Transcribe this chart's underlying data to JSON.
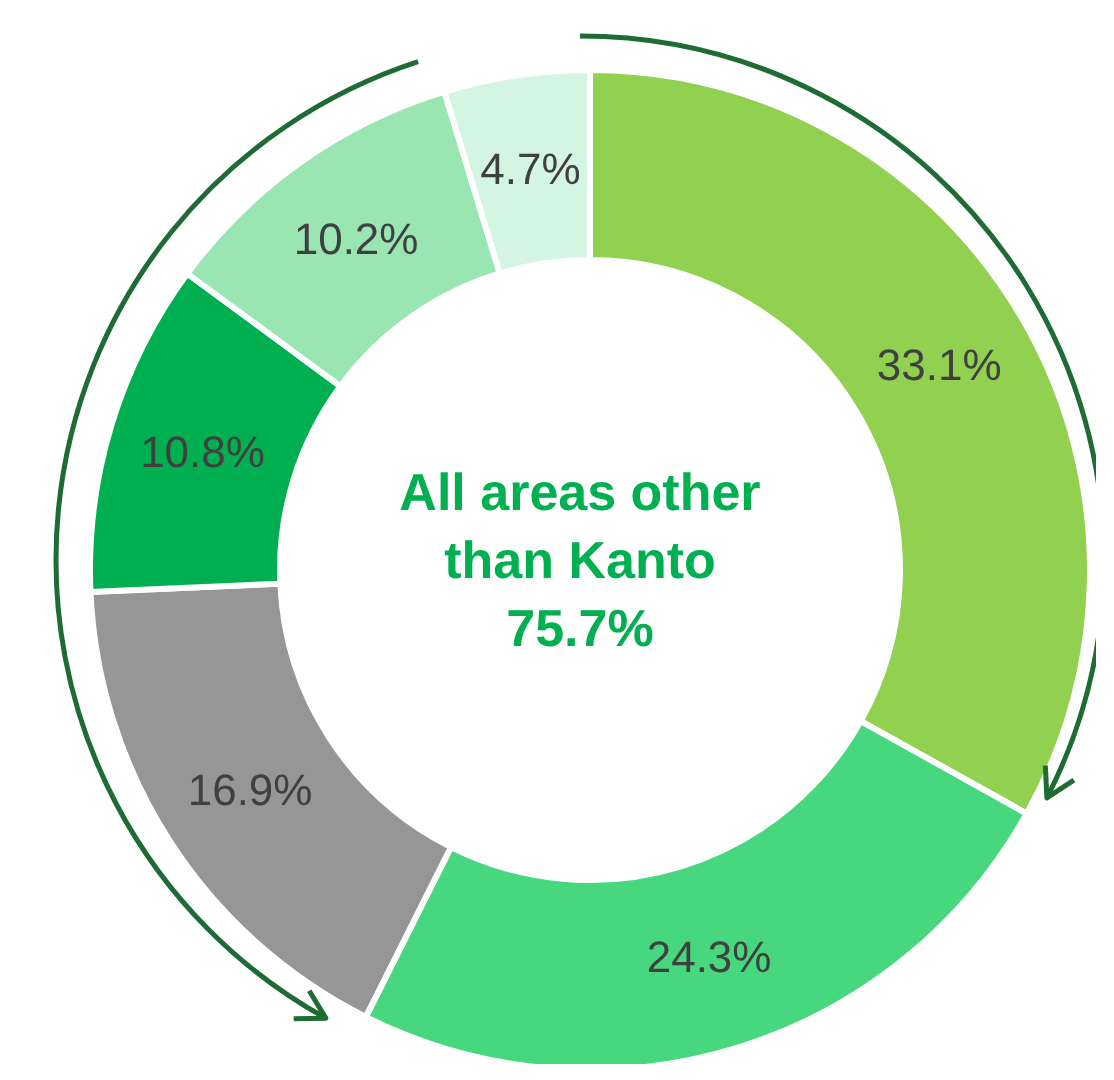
{
  "chart_data": {
    "type": "donut",
    "categories": [
      null,
      null,
      null,
      null,
      null,
      null
    ],
    "values": [
      33.1,
      24.3,
      16.9,
      10.8,
      10.2,
      4.7
    ],
    "value_labels": [
      "33.1%",
      "24.3%",
      "16.9%",
      "10.8%",
      "10.2%",
      "4.7%"
    ],
    "colors": [
      "#92d050",
      "#47d77f",
      "#969696",
      "#00b050",
      "#99e6b3",
      "#d5f5e3"
    ],
    "annotations": [
      "All areas other\nthan Kanto\n75.7%"
    ],
    "legend": false
  }
}
